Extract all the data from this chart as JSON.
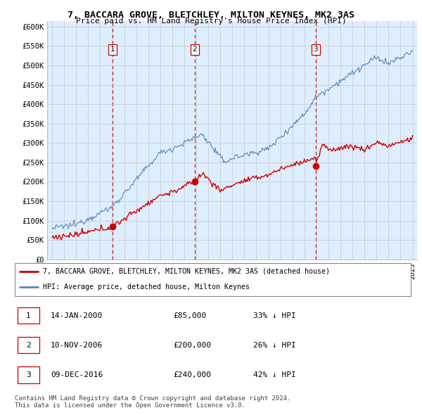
{
  "title": "7, BACCARA GROVE, BLETCHLEY, MILTON KEYNES, MK2 3AS",
  "subtitle": "Price paid vs. HM Land Registry's House Price Index (HPI)",
  "ylabel_ticks": [
    "£0",
    "£50K",
    "£100K",
    "£150K",
    "£200K",
    "£250K",
    "£300K",
    "£350K",
    "£400K",
    "£450K",
    "£500K",
    "£550K",
    "£600K"
  ],
  "ytick_vals": [
    0,
    50000,
    100000,
    150000,
    200000,
    250000,
    300000,
    350000,
    400000,
    450000,
    500000,
    550000,
    600000
  ],
  "ylim": [
    0,
    615000
  ],
  "xlim_start": 1994.6,
  "xlim_end": 2025.4,
  "sale_dates": [
    2000.04,
    2006.87,
    2016.93
  ],
  "sale_prices": [
    85000,
    200000,
    240000
  ],
  "sale_labels": [
    "1",
    "2",
    "3"
  ],
  "hpi_color": "#5588bb",
  "hpi_fill_color": "#ddeeff",
  "sale_line_color": "#cc0000",
  "marker_color": "#cc0000",
  "vline_color": "#cc0000",
  "legend_sale_label": "7, BACCARA GROVE, BLETCHLEY, MILTON KEYNES, MK2 3AS (detached house)",
  "legend_hpi_label": "HPI: Average price, detached house, Milton Keynes",
  "table_data": [
    [
      "1",
      "14-JAN-2000",
      "£85,000",
      "33% ↓ HPI"
    ],
    [
      "2",
      "10-NOV-2006",
      "£200,000",
      "26% ↓ HPI"
    ],
    [
      "3",
      "09-DEC-2016",
      "£240,000",
      "42% ↓ HPI"
    ]
  ],
  "footer": "Contains HM Land Registry data © Crown copyright and database right 2024.\nThis data is licensed under the Open Government Licence v3.0.",
  "background_color": "#ffffff",
  "grid_color": "#cccccc"
}
